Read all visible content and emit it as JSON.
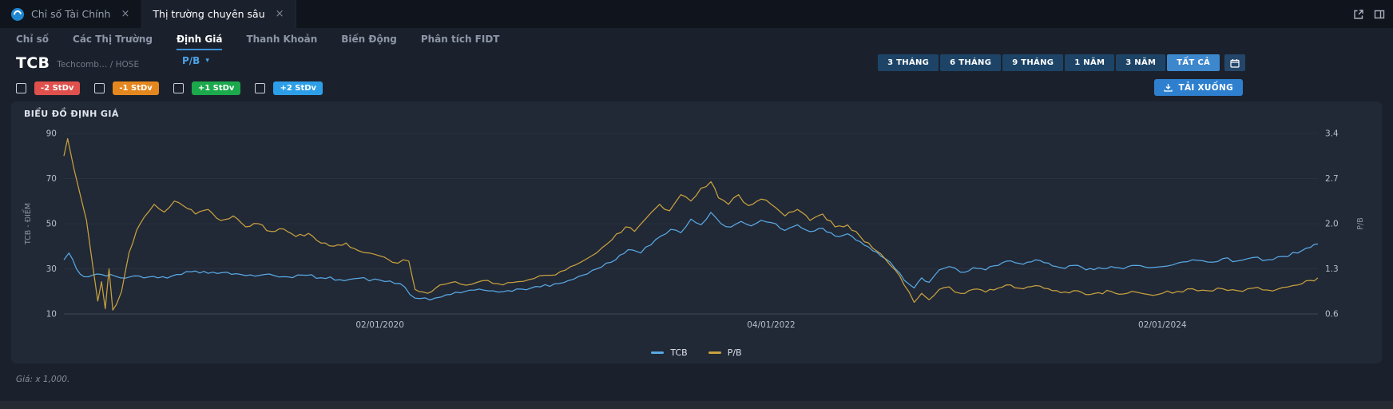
{
  "window": {
    "tabs": [
      {
        "label": "Chỉ số Tài Chính"
      },
      {
        "label": "Thị trường chuyên sâu"
      }
    ],
    "close_glyph": "×"
  },
  "nav": {
    "items": [
      "Chỉ số",
      "Các Thị Trường",
      "Định Giá",
      "Thanh Khoản",
      "Biến Động",
      "Phân tích FIDT"
    ],
    "active": "Định Giá"
  },
  "toolbar": {
    "symbol": "TCB",
    "symbol_sub": "Techcomb… / HOSE",
    "metric_select": "P/B",
    "metric_caret": "▾",
    "ranges": [
      "3 THÁNG",
      "6 THÁNG",
      "9 THÁNG",
      "1 NĂM",
      "3 NĂM",
      "TẤT CẢ"
    ],
    "active_range": "TẤT CẢ",
    "download_label": "TẢI XUỐNG"
  },
  "stdv_toggles": [
    {
      "label": "-2 StDv",
      "color": "#e0514d",
      "checked": false
    },
    {
      "label": "-1 StDv",
      "color": "#e5871f",
      "checked": false
    },
    {
      "label": "+1 StDv",
      "color": "#1ba94c",
      "checked": false
    },
    {
      "label": "+2 StDv",
      "color": "#2d9fe8",
      "checked": false
    }
  ],
  "footer_note": "Giá: x 1,000.",
  "chart_data": {
    "type": "line",
    "title": "BIỂU ĐỒ ĐỊNH GIÁ",
    "left_axis": {
      "label": "TCB - ĐIỂM",
      "ticks": [
        90,
        70,
        50,
        30,
        10
      ],
      "range": [
        10,
        90
      ]
    },
    "right_axis": {
      "label": "P/B",
      "ticks": [
        3.4,
        2.7,
        2.0,
        1.3,
        0.6
      ],
      "range": [
        0.6,
        3.4
      ]
    },
    "x_ticks": [
      {
        "label": "02/01/2020",
        "pos": 0.252
      },
      {
        "label": "04/01/2022",
        "pos": 0.564
      },
      {
        "label": "02/01/2024",
        "pos": 0.876
      }
    ],
    "grid": "faint-horizontal",
    "legend_position": "bottom",
    "series": [
      {
        "name": "TCB",
        "axis": "left",
        "color": "#58a9e4",
        "points": [
          [
            0.0,
            34
          ],
          [
            0.004,
            37
          ],
          [
            0.01,
            30
          ],
          [
            0.016,
            26.5
          ],
          [
            0.03,
            27.5
          ],
          [
            0.045,
            26
          ],
          [
            0.06,
            26.8
          ],
          [
            0.075,
            26
          ],
          [
            0.09,
            27.5
          ],
          [
            0.105,
            29
          ],
          [
            0.115,
            28
          ],
          [
            0.13,
            28.5
          ],
          [
            0.145,
            27
          ],
          [
            0.16,
            27.5
          ],
          [
            0.175,
            26.5
          ],
          [
            0.19,
            27.2
          ],
          [
            0.205,
            26
          ],
          [
            0.22,
            25.2
          ],
          [
            0.235,
            25.8
          ],
          [
            0.252,
            25
          ],
          [
            0.268,
            23.5
          ],
          [
            0.28,
            17
          ],
          [
            0.292,
            16.2
          ],
          [
            0.305,
            18.5
          ],
          [
            0.32,
            20
          ],
          [
            0.335,
            20.5
          ],
          [
            0.35,
            19.8
          ],
          [
            0.365,
            21
          ],
          [
            0.38,
            22
          ],
          [
            0.395,
            23.5
          ],
          [
            0.41,
            26.5
          ],
          [
            0.425,
            30
          ],
          [
            0.44,
            34
          ],
          [
            0.45,
            38.5
          ],
          [
            0.46,
            37
          ],
          [
            0.472,
            43
          ],
          [
            0.484,
            47.5
          ],
          [
            0.492,
            46
          ],
          [
            0.5,
            52
          ],
          [
            0.508,
            49.5
          ],
          [
            0.516,
            55
          ],
          [
            0.524,
            50
          ],
          [
            0.532,
            48.5
          ],
          [
            0.54,
            51
          ],
          [
            0.548,
            49
          ],
          [
            0.556,
            51.5
          ],
          [
            0.564,
            50.5
          ],
          [
            0.575,
            47
          ],
          [
            0.585,
            49.5
          ],
          [
            0.595,
            46.5
          ],
          [
            0.605,
            48
          ],
          [
            0.615,
            44.5
          ],
          [
            0.625,
            45.5
          ],
          [
            0.635,
            42
          ],
          [
            0.645,
            38
          ],
          [
            0.655,
            34.5
          ],
          [
            0.663,
            30
          ],
          [
            0.67,
            25
          ],
          [
            0.678,
            21.5
          ],
          [
            0.684,
            26
          ],
          [
            0.69,
            24
          ],
          [
            0.698,
            29.5
          ],
          [
            0.706,
            31
          ],
          [
            0.715,
            28.5
          ],
          [
            0.725,
            30.5
          ],
          [
            0.735,
            29.5
          ],
          [
            0.745,
            31.5
          ],
          [
            0.755,
            33.5
          ],
          [
            0.765,
            32
          ],
          [
            0.775,
            34
          ],
          [
            0.785,
            32.5
          ],
          [
            0.795,
            30.5
          ],
          [
            0.805,
            31.5
          ],
          [
            0.815,
            29.5
          ],
          [
            0.825,
            30.5
          ],
          [
            0.835,
            31
          ],
          [
            0.845,
            30
          ],
          [
            0.855,
            31.5
          ],
          [
            0.865,
            30.5
          ],
          [
            0.876,
            31
          ],
          [
            0.888,
            32.5
          ],
          [
            0.9,
            34
          ],
          [
            0.912,
            33
          ],
          [
            0.924,
            34.5
          ],
          [
            0.936,
            33.5
          ],
          [
            0.948,
            35
          ],
          [
            0.96,
            34
          ],
          [
            0.972,
            35.5
          ],
          [
            0.984,
            37
          ],
          [
            0.994,
            39.5
          ],
          [
            1.0,
            41
          ]
        ]
      },
      {
        "name": "P/B",
        "axis": "right",
        "color": "#c7a13e",
        "points": [
          [
            0.0,
            3.05
          ],
          [
            0.003,
            3.32
          ],
          [
            0.008,
            2.85
          ],
          [
            0.013,
            2.45
          ],
          [
            0.018,
            2.05
          ],
          [
            0.023,
            1.35
          ],
          [
            0.027,
            0.8
          ],
          [
            0.03,
            1.1
          ],
          [
            0.033,
            0.68
          ],
          [
            0.036,
            1.3
          ],
          [
            0.039,
            0.66
          ],
          [
            0.042,
            0.75
          ],
          [
            0.046,
            0.95
          ],
          [
            0.052,
            1.55
          ],
          [
            0.058,
            1.9
          ],
          [
            0.064,
            2.1
          ],
          [
            0.072,
            2.3
          ],
          [
            0.08,
            2.18
          ],
          [
            0.088,
            2.35
          ],
          [
            0.095,
            2.28
          ],
          [
            0.105,
            2.15
          ],
          [
            0.115,
            2.22
          ],
          [
            0.125,
            2.05
          ],
          [
            0.135,
            2.12
          ],
          [
            0.145,
            1.95
          ],
          [
            0.155,
            2.0
          ],
          [
            0.165,
            1.88
          ],
          [
            0.175,
            1.92
          ],
          [
            0.185,
            1.8
          ],
          [
            0.195,
            1.85
          ],
          [
            0.205,
            1.7
          ],
          [
            0.215,
            1.65
          ],
          [
            0.225,
            1.7
          ],
          [
            0.235,
            1.58
          ],
          [
            0.252,
            1.5
          ],
          [
            0.262,
            1.4
          ],
          [
            0.275,
            1.42
          ],
          [
            0.28,
            0.98
          ],
          [
            0.29,
            0.92
          ],
          [
            0.3,
            1.05
          ],
          [
            0.312,
            1.1
          ],
          [
            0.325,
            1.06
          ],
          [
            0.338,
            1.12
          ],
          [
            0.35,
            1.05
          ],
          [
            0.362,
            1.1
          ],
          [
            0.375,
            1.15
          ],
          [
            0.388,
            1.2
          ],
          [
            0.4,
            1.28
          ],
          [
            0.412,
            1.4
          ],
          [
            0.425,
            1.55
          ],
          [
            0.437,
            1.75
          ],
          [
            0.448,
            1.95
          ],
          [
            0.455,
            1.88
          ],
          [
            0.465,
            2.1
          ],
          [
            0.475,
            2.3
          ],
          [
            0.483,
            2.2
          ],
          [
            0.492,
            2.45
          ],
          [
            0.5,
            2.35
          ],
          [
            0.508,
            2.55
          ],
          [
            0.516,
            2.65
          ],
          [
            0.522,
            2.4
          ],
          [
            0.53,
            2.3
          ],
          [
            0.538,
            2.45
          ],
          [
            0.546,
            2.28
          ],
          [
            0.556,
            2.38
          ],
          [
            0.564,
            2.3
          ],
          [
            0.575,
            2.12
          ],
          [
            0.585,
            2.22
          ],
          [
            0.595,
            2.05
          ],
          [
            0.605,
            2.15
          ],
          [
            0.615,
            1.95
          ],
          [
            0.625,
            1.98
          ],
          [
            0.635,
            1.8
          ],
          [
            0.645,
            1.62
          ],
          [
            0.655,
            1.45
          ],
          [
            0.663,
            1.28
          ],
          [
            0.67,
            1.05
          ],
          [
            0.678,
            0.78
          ],
          [
            0.684,
            0.92
          ],
          [
            0.69,
            0.82
          ],
          [
            0.698,
            0.98
          ],
          [
            0.706,
            1.02
          ],
          [
            0.715,
            0.92
          ],
          [
            0.725,
            0.98
          ],
          [
            0.735,
            0.94
          ],
          [
            0.745,
            1.0
          ],
          [
            0.755,
            1.05
          ],
          [
            0.765,
            0.99
          ],
          [
            0.775,
            1.04
          ],
          [
            0.785,
            0.99
          ],
          [
            0.795,
            0.93
          ],
          [
            0.805,
            0.96
          ],
          [
            0.815,
            0.9
          ],
          [
            0.825,
            0.93
          ],
          [
            0.835,
            0.95
          ],
          [
            0.845,
            0.91
          ],
          [
            0.855,
            0.94
          ],
          [
            0.865,
            0.9
          ],
          [
            0.876,
            0.92
          ],
          [
            0.888,
            0.95
          ],
          [
            0.9,
            0.99
          ],
          [
            0.912,
            0.96
          ],
          [
            0.924,
            0.99
          ],
          [
            0.936,
            0.96
          ],
          [
            0.948,
            1.0
          ],
          [
            0.96,
            0.97
          ],
          [
            0.972,
            1.01
          ],
          [
            0.984,
            1.05
          ],
          [
            0.994,
            1.12
          ],
          [
            1.0,
            1.16
          ]
        ]
      }
    ]
  }
}
